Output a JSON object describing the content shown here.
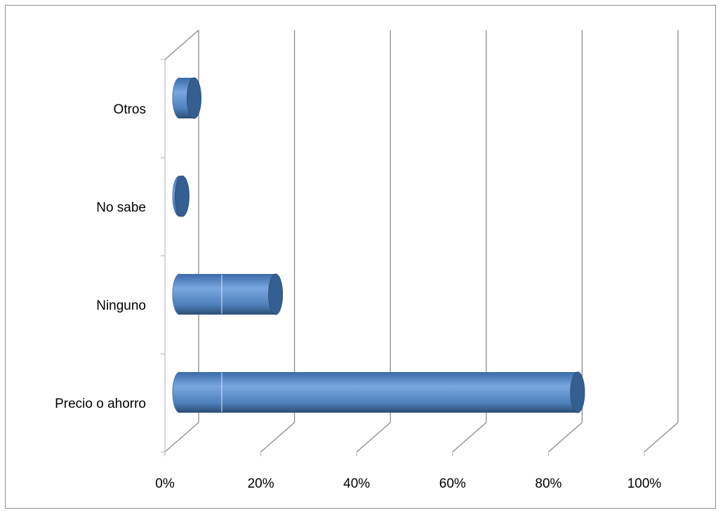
{
  "chart_data": {
    "type": "bar",
    "orientation": "horizontal",
    "style": "3d-cylinder",
    "categories": [
      "Precio o ahorro",
      "Ninguno",
      "No sabe",
      "Otros"
    ],
    "values": [
      0.83,
      0.2,
      0.005,
      0.03
    ],
    "xlim": [
      0,
      1
    ],
    "xticks": [
      "0%",
      "20%",
      "40%",
      "60%",
      "80%",
      "100%"
    ],
    "grid": true,
    "legend": "none",
    "colors": {
      "bar": "#4f81bd",
      "bar_light": "#7aa6df",
      "bar_dark": "#2c4d75",
      "cap": "#365f91",
      "grid": "#8c8c8c",
      "axis": "#bfbfbf"
    }
  }
}
